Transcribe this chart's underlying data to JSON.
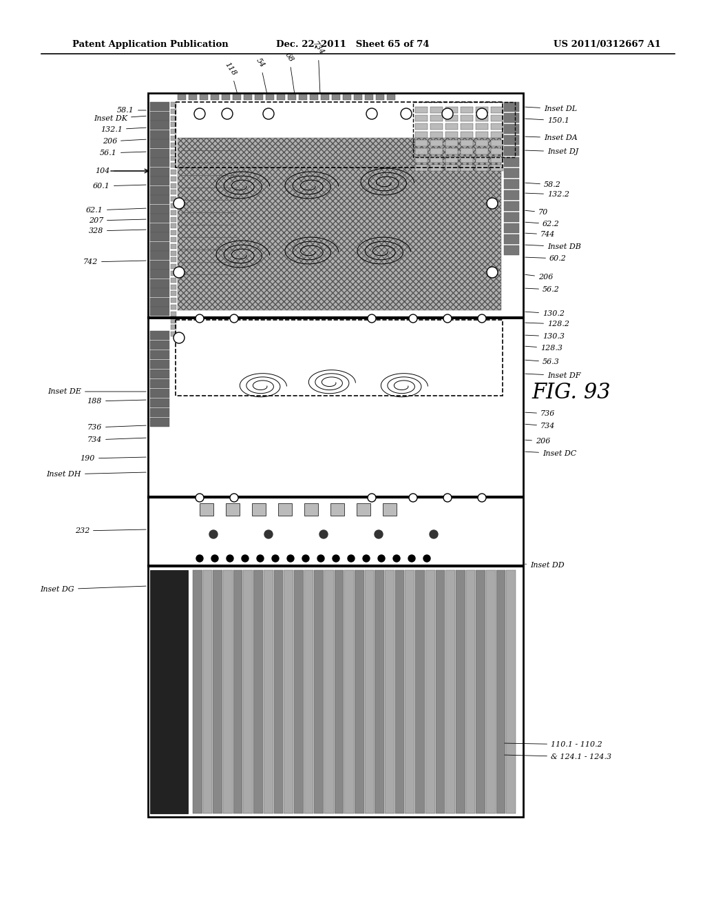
{
  "bg_color": "#ffffff",
  "header_left": "Patent Application Publication",
  "header_mid": "Dec. 22, 2011   Sheet 65 of 74",
  "header_right": "US 2011/0312667 A1",
  "figure_label": "FIG. 93"
}
